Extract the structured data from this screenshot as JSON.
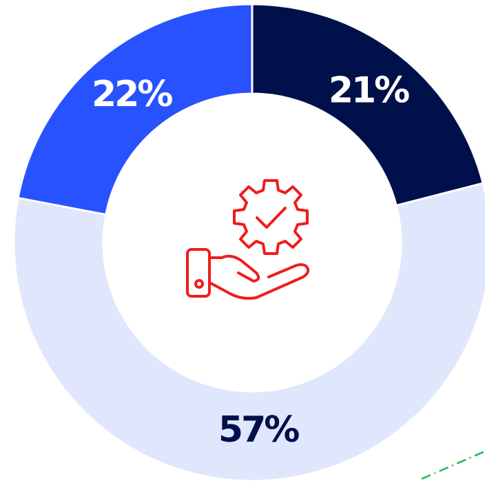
{
  "chart_data": {
    "type": "pie",
    "values": [
      21,
      57,
      22
    ],
    "value_labels": [
      "21%",
      "57%",
      "22%"
    ],
    "colors": [
      "#00104a",
      "#e0e6fb",
      "#2952ff"
    ]
  }
}
